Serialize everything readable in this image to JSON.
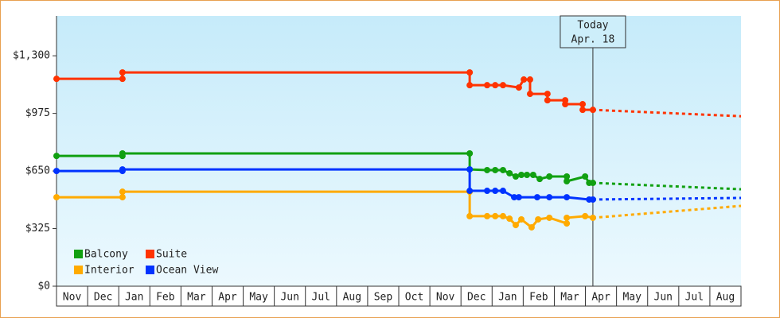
{
  "chart_data": {
    "type": "line",
    "ylim": [
      0,
      1525
    ],
    "xlim": [
      0,
      22
    ],
    "yticks": [
      {
        "value": 0,
        "label": "$0"
      },
      {
        "value": 325,
        "label": "$325"
      },
      {
        "value": 650,
        "label": "$650"
      },
      {
        "value": 975,
        "label": "$975"
      },
      {
        "value": 1300,
        "label": "$1,300"
      }
    ],
    "xticks": [
      {
        "value": 0.5,
        "label": "Nov"
      },
      {
        "value": 1.5,
        "label": "Dec"
      },
      {
        "value": 2.5,
        "label": "Jan"
      },
      {
        "value": 3.5,
        "label": "Feb"
      },
      {
        "value": 4.5,
        "label": "Mar"
      },
      {
        "value": 5.5,
        "label": "Apr"
      },
      {
        "value": 6.5,
        "label": "May"
      },
      {
        "value": 7.5,
        "label": "Jun"
      },
      {
        "value": 8.5,
        "label": "Jul"
      },
      {
        "value": 9.5,
        "label": "Aug"
      },
      {
        "value": 10.5,
        "label": "Sep"
      },
      {
        "value": 11.5,
        "label": "Oct"
      },
      {
        "value": 12.5,
        "label": "Nov"
      },
      {
        "value": 13.5,
        "label": "Dec"
      },
      {
        "value": 14.5,
        "label": "Jan"
      },
      {
        "value": 15.5,
        "label": "Feb"
      },
      {
        "value": 16.5,
        "label": "Mar"
      },
      {
        "value": 17.5,
        "label": "Apr"
      },
      {
        "value": 18.5,
        "label": "May"
      },
      {
        "value": 19.5,
        "label": "Jun"
      },
      {
        "value": 20.5,
        "label": "Jul"
      },
      {
        "value": 21.5,
        "label": "Aug"
      }
    ],
    "today": {
      "x": 17.24,
      "label": "Today",
      "date": "Apr. 18"
    },
    "series": [
      {
        "name": "Balcony",
        "color": "#11a011",
        "x": [
          0,
          2.12,
          2.12,
          13.28,
          13.28,
          13.84,
          14.1,
          14.35,
          14.56,
          14.76,
          14.94,
          15.12,
          15.32,
          15.53,
          15.84,
          16.4,
          16.4,
          16.99,
          17.12,
          17.24
        ],
        "values": [
          735,
          735,
          749,
          749,
          659,
          655,
          655,
          655,
          637,
          619,
          628,
          628,
          628,
          605,
          619,
          619,
          592,
          619,
          583,
          583
        ],
        "forecast_x": [
          17.24,
          22
        ],
        "forecast_values": [
          583,
          547
        ]
      },
      {
        "name": "Suite",
        "color": "#ff3300",
        "x": [
          0,
          2.12,
          2.12,
          13.28,
          13.28,
          13.84,
          14.1,
          14.35,
          14.86,
          15.02,
          15.22,
          15.22,
          15.78,
          15.78,
          16.35,
          16.35,
          16.91,
          16.91,
          17.24
        ],
        "values": [
          1170,
          1170,
          1206,
          1206,
          1134,
          1134,
          1134,
          1134,
          1121,
          1166,
          1166,
          1085,
          1085,
          1049,
          1049,
          1027,
          1027,
          995,
          995
        ],
        "forecast_x": [
          17.24,
          22
        ],
        "forecast_values": [
          995,
          959
        ]
      },
      {
        "name": "Interior",
        "color": "#ffaa00",
        "x": [
          0,
          2.12,
          2.12,
          13.28,
          13.28,
          13.84,
          14.1,
          14.35,
          14.56,
          14.76,
          14.94,
          15.27,
          15.48,
          15.84,
          16.4,
          16.4,
          16.99,
          17.24
        ],
        "values": [
          502,
          502,
          533,
          533,
          395,
          395,
          395,
          395,
          381,
          345,
          377,
          332,
          377,
          386,
          354,
          386,
          395,
          386
        ],
        "forecast_x": [
          17.24,
          22
        ],
        "forecast_values": [
          386,
          453
        ]
      },
      {
        "name": "Ocean View",
        "color": "#0033ff",
        "x": [
          0,
          2.12,
          2.12,
          13.28,
          13.28,
          13.84,
          14.1,
          14.35,
          14.71,
          14.86,
          15.45,
          15.84,
          16.4,
          17.12,
          17.24
        ],
        "values": [
          650,
          650,
          659,
          659,
          538,
          538,
          538,
          538,
          502,
          502,
          502,
          502,
          502,
          489,
          489
        ],
        "forecast_x": [
          17.24,
          22
        ],
        "forecast_values": [
          489,
          498
        ]
      }
    ]
  }
}
